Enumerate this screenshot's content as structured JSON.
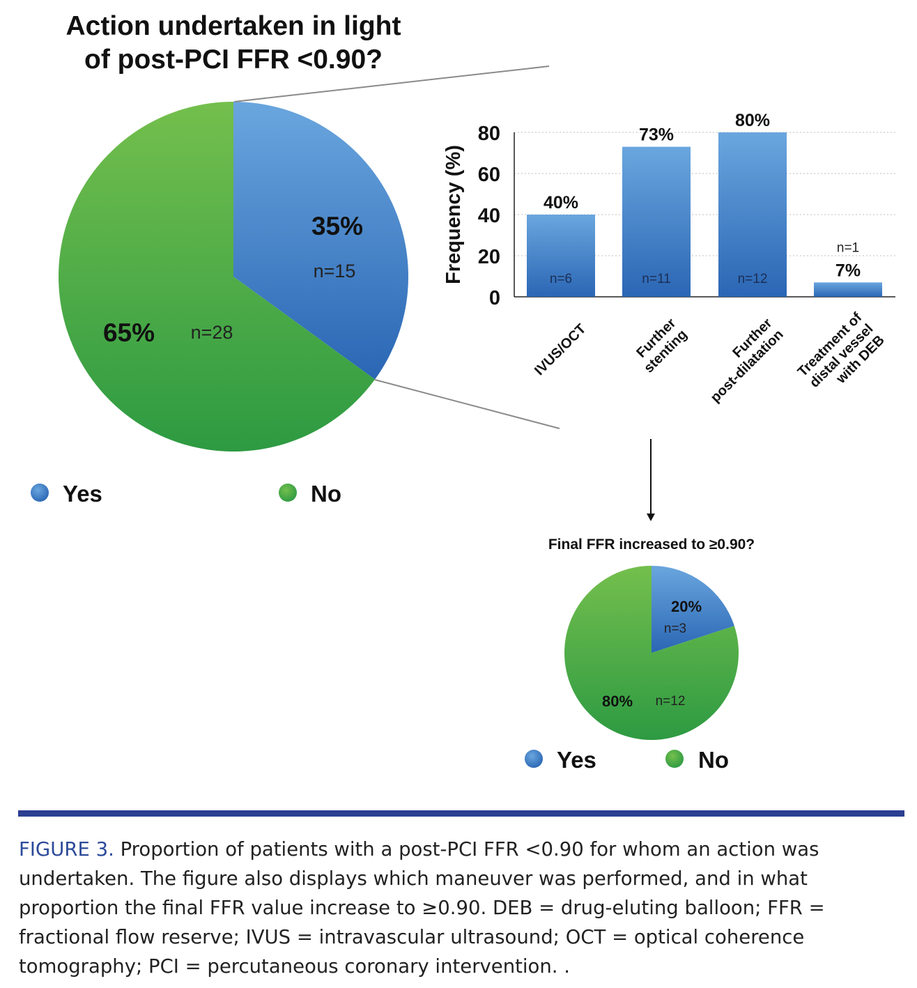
{
  "colors": {
    "blue_light": "#6aa6de",
    "blue_dark": "#2a66b4",
    "green_light": "#74bf4d",
    "green_dark": "#2d9a42",
    "caption_accent": "#2c3e91"
  },
  "chart_data": [
    {
      "type": "pie",
      "title_lines": [
        "Action undertaken in light",
        "of post-PCI FFR <0.90?"
      ],
      "slices": [
        {
          "label": "Yes",
          "value": 35,
          "pct_label": "35%",
          "n_label": "n=15"
        },
        {
          "label": "No",
          "value": 65,
          "pct_label": "65%",
          "n_label": "n=28"
        }
      ],
      "legend": [
        "Yes",
        "No"
      ]
    },
    {
      "type": "bar",
      "ylabel": "Frequency (%)",
      "ylim": [
        0,
        80
      ],
      "yticks": [
        0,
        20,
        40,
        60,
        80
      ],
      "category_lines": [
        [
          "IVUS/OCT"
        ],
        [
          "Further",
          "stenting"
        ],
        [
          "Further",
          "post-dilatation"
        ],
        [
          "Treatment of",
          "distal vessel",
          "with DEB"
        ]
      ],
      "values": [
        40,
        73,
        80,
        7
      ],
      "pct_labels": [
        "40%",
        "73%",
        "80%",
        "7%"
      ],
      "n_labels": [
        "n=6",
        "n=11",
        "n=12",
        "n=1"
      ]
    },
    {
      "type": "pie",
      "title": "Final FFR increased to ≥0.90?",
      "slices": [
        {
          "label": "Yes",
          "value": 20,
          "pct_label": "20%",
          "n_label": "n=3"
        },
        {
          "label": "No",
          "value": 80,
          "pct_label": "80%",
          "n_label": "n=12"
        }
      ],
      "legend": [
        "Yes",
        "No"
      ]
    }
  ],
  "caption": {
    "label": "FIGURE 3.",
    "text": " Proportion of patients with a post-PCI FFR <0.90 for whom an action was undertaken. The figure also displays which maneuver was performed, and in what proportion the final FFR value increase to ≥0.90. DEB = drug-eluting balloon; FFR = fractional flow reserve; IVUS = intravascular ultrasound; OCT = optical coherence tomography; PCI = percutaneous coronary intervention. ."
  }
}
